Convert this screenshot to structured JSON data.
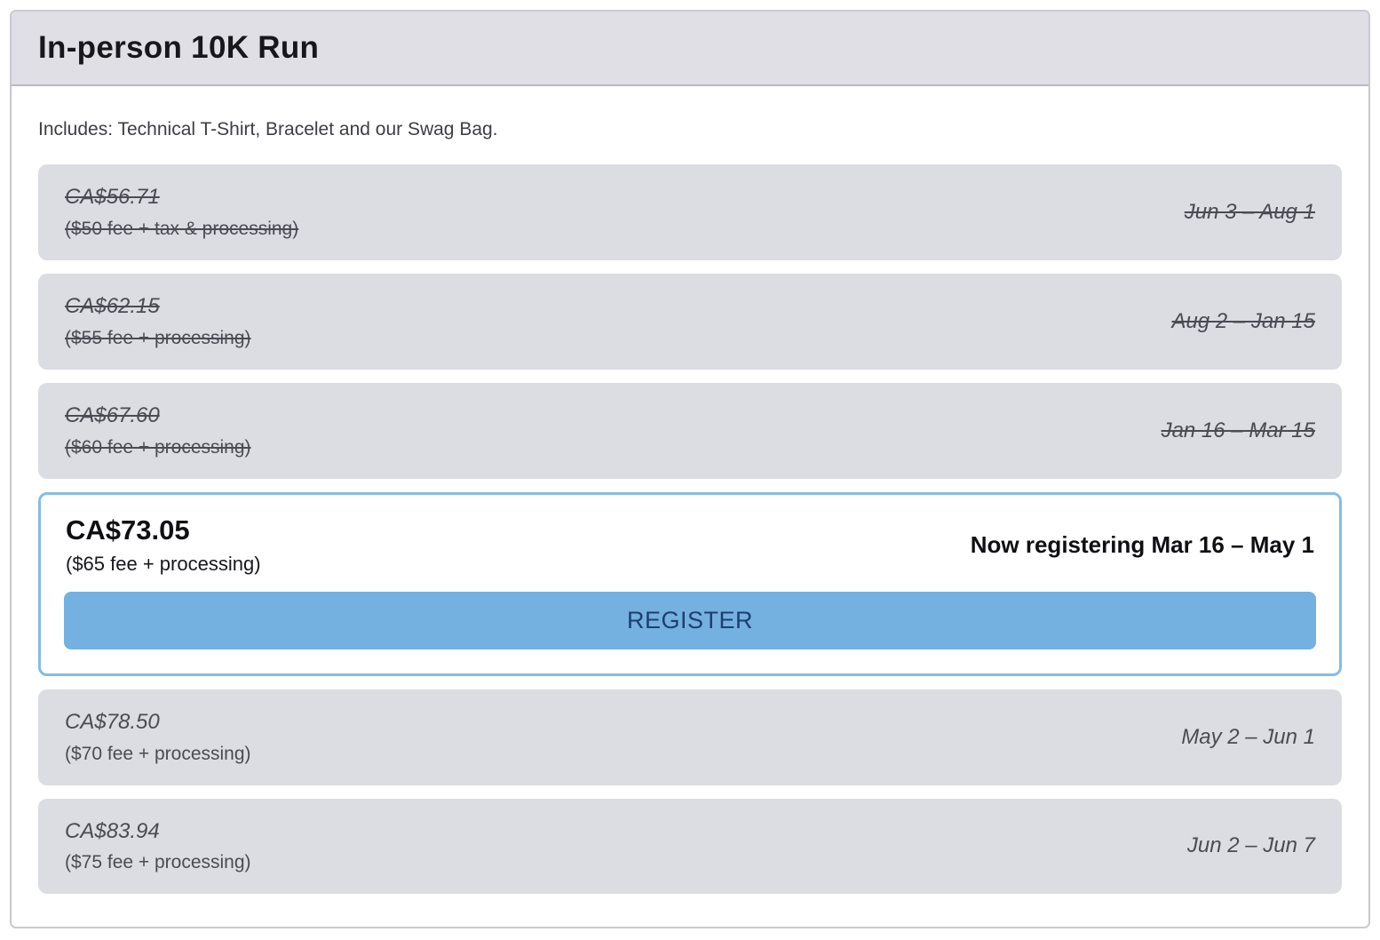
{
  "header": {
    "title": "In-person 10K Run"
  },
  "description": "Includes: Technical T-Shirt, Bracelet and our Swag Bag.",
  "colors": {
    "row_background": "#dcdce3",
    "header_background": "#dfdfe5",
    "active_border_blue": "#85bce7",
    "register_button_blue": "#74b1e1",
    "register_text_navy": "#1e3e6f",
    "muted_text": "#4b4b54"
  },
  "tiers": [
    {
      "status": "past",
      "price": "CA$56.71",
      "fee": "($50 fee + tax & processing)",
      "dates": "Jun 3 – Aug 1"
    },
    {
      "status": "past",
      "price": "CA$62.15",
      "fee": "($55 fee + processing)",
      "dates": "Aug 2 – Jan 15"
    },
    {
      "status": "past",
      "price": "CA$67.60",
      "fee": "($60 fee + processing)",
      "dates": "Jan 16 – Mar 15"
    },
    {
      "status": "active",
      "price": "CA$73.05",
      "fee": "($65 fee + processing)",
      "dates": "Now registering Mar 16 – May 1",
      "register_label": "REGISTER"
    },
    {
      "status": "future",
      "price": "CA$78.50",
      "fee": "($70 fee + processing)",
      "dates": "May 2 – Jun 1"
    },
    {
      "status": "future",
      "price": "CA$83.94",
      "fee": "($75 fee + processing)",
      "dates": "Jun 2 – Jun 7"
    }
  ]
}
